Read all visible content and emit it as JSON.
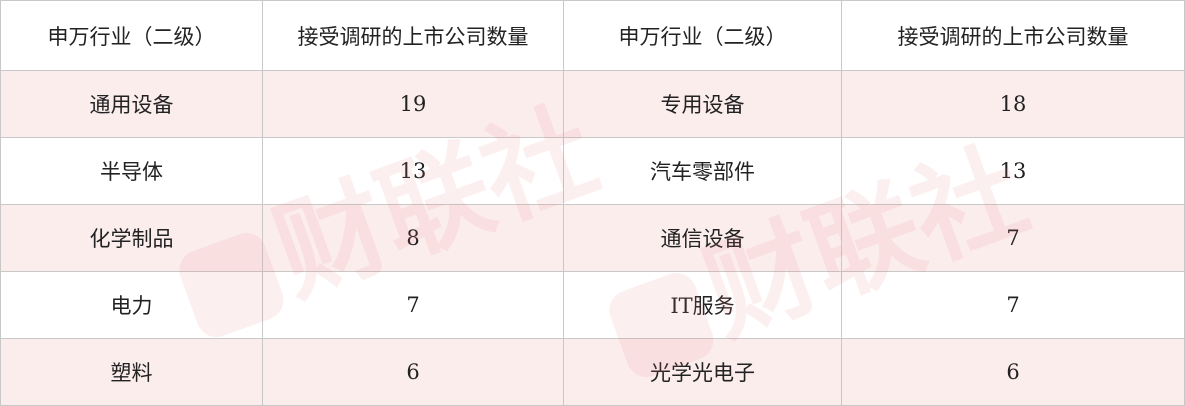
{
  "headers": [
    "申万行业（二级）",
    "接受调研的上市公司数量",
    "申万行业（二级）",
    "接受调研的上市公司数量"
  ],
  "rows": [
    [
      "通用设备",
      "19",
      "专用设备",
      "18"
    ],
    [
      "半导体",
      "13",
      "汽车零部件",
      "13"
    ],
    [
      "化学制品",
      "8",
      "通信设备",
      "7"
    ],
    [
      "电力",
      "7",
      "IT服务",
      "7"
    ],
    [
      "塑料",
      "6",
      "光学光电子",
      "6"
    ]
  ],
  "watermark": "财联社",
  "colors": {
    "stripe": "#fceaea",
    "border": "#c8c8c8"
  }
}
